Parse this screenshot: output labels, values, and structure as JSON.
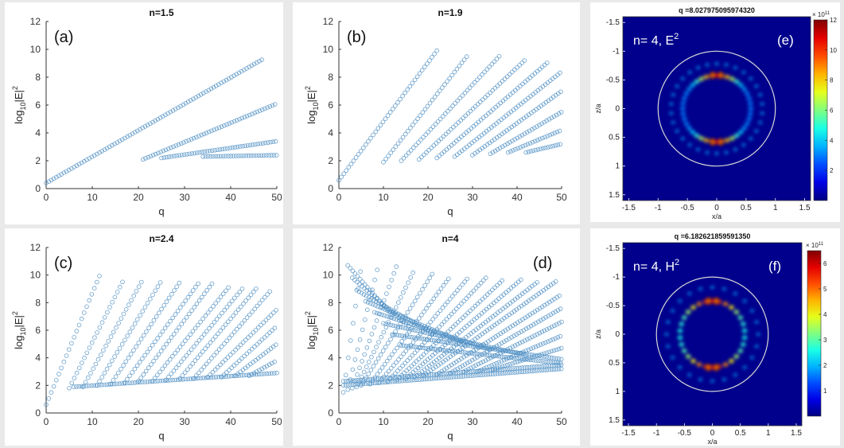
{
  "colors": {
    "marker": "#4f8fc4",
    "background": "#e9e9e9",
    "field_background": "#00008c",
    "ring": "#d8d8d8"
  },
  "chart_data": [
    {
      "type": "scatter",
      "panel_label": "(a)",
      "title": "n=1.5",
      "xlabel": "q",
      "ylabel": "log10|E|2",
      "xlim": [
        0,
        50
      ],
      "ylim": [
        0,
        12
      ],
      "xticks": [
        "0",
        "10",
        "20",
        "30",
        "40",
        "50"
      ],
      "yticks": [
        "0",
        "2",
        "4",
        "6",
        "8",
        "10",
        "12"
      ],
      "series": [
        {
          "x": [
            0,
            47
          ],
          "y": [
            0.4,
            9.3
          ]
        },
        {
          "x": [
            21,
            50
          ],
          "y": [
            2.1,
            6.1
          ]
        },
        {
          "x": [
            25,
            50
          ],
          "y": [
            2.2,
            3.4
          ]
        },
        {
          "x": [
            34,
            50
          ],
          "y": [
            2.3,
            2.4
          ]
        }
      ]
    },
    {
      "type": "scatter",
      "panel_label": "(b)",
      "title": "n=1.9",
      "xlabel": "q",
      "ylabel": "log10|E|2",
      "xlim": [
        0,
        50
      ],
      "ylim": [
        0,
        12
      ],
      "xticks": [
        "0",
        "10",
        "20",
        "30",
        "40",
        "50"
      ],
      "yticks": [
        "0",
        "2",
        "4",
        "6",
        "8",
        "10",
        "12"
      ],
      "series": [
        {
          "x": [
            0,
            22
          ],
          "y": [
            0.6,
            9.9
          ]
        },
        {
          "x": [
            10,
            29
          ],
          "y": [
            1.9,
            9.6
          ]
        },
        {
          "x": [
            14,
            36
          ],
          "y": [
            2.0,
            9.5
          ]
        },
        {
          "x": [
            18,
            42
          ],
          "y": [
            2.1,
            9.3
          ]
        },
        {
          "x": [
            22,
            47
          ],
          "y": [
            2.2,
            9.1
          ]
        },
        {
          "x": [
            26,
            50
          ],
          "y": [
            2.3,
            8.4
          ]
        },
        {
          "x": [
            30,
            50
          ],
          "y": [
            2.4,
            7.0
          ]
        },
        {
          "x": [
            34,
            50
          ],
          "y": [
            2.5,
            5.5
          ]
        },
        {
          "x": [
            38,
            50
          ],
          "y": [
            2.6,
            4.2
          ]
        },
        {
          "x": [
            42,
            50
          ],
          "y": [
            2.6,
            3.2
          ]
        }
      ]
    },
    {
      "type": "scatter",
      "panel_label": "(c)",
      "title": "n=2.4",
      "xlabel": "q",
      "ylabel": "log10|E|2",
      "xlim": [
        0,
        50
      ],
      "ylim": [
        0,
        12
      ],
      "xticks": [
        "0",
        "10",
        "20",
        "30",
        "40",
        "50"
      ],
      "yticks": [
        "0",
        "2",
        "4",
        "6",
        "8",
        "10",
        "12"
      ],
      "series": [
        {
          "x": [
            0,
            12
          ],
          "y": [
            0.6,
            10.3
          ]
        },
        {
          "x": [
            5,
            17
          ],
          "y": [
            1.8,
            9.8
          ]
        },
        {
          "x": [
            8,
            21
          ],
          "y": [
            1.9,
            9.7
          ]
        },
        {
          "x": [
            11,
            25
          ],
          "y": [
            2.0,
            9.6
          ]
        },
        {
          "x": [
            14,
            29
          ],
          "y": [
            2.1,
            9.5
          ]
        },
        {
          "x": [
            17,
            33
          ],
          "y": [
            2.2,
            9.4
          ]
        },
        {
          "x": [
            20,
            36
          ],
          "y": [
            2.3,
            9.4
          ]
        },
        {
          "x": [
            23,
            40
          ],
          "y": [
            2.3,
            9.3
          ]
        },
        {
          "x": [
            26,
            43
          ],
          "y": [
            2.4,
            9.2
          ]
        },
        {
          "x": [
            29,
            46
          ],
          "y": [
            2.5,
            9.2
          ]
        },
        {
          "x": [
            32,
            49
          ],
          "y": [
            2.5,
            9.0
          ]
        },
        {
          "x": [
            35,
            50
          ],
          "y": [
            2.6,
            7.5
          ]
        },
        {
          "x": [
            38,
            50
          ],
          "y": [
            2.6,
            6.3
          ]
        },
        {
          "x": [
            41,
            50
          ],
          "y": [
            2.7,
            5.0
          ]
        },
        {
          "x": [
            44,
            50
          ],
          "y": [
            2.7,
            3.8
          ]
        },
        {
          "x": [
            6,
            50
          ],
          "y": [
            1.9,
            2.9
          ]
        }
      ]
    },
    {
      "type": "scatter",
      "panel_label": "(d)",
      "title": "n=4",
      "xlabel": "q",
      "ylabel": "log10|E|2",
      "xlim": [
        0,
        50
      ],
      "ylim": [
        0,
        12
      ],
      "xticks": [
        "0",
        "10",
        "20",
        "30",
        "40",
        "50"
      ],
      "yticks": [
        "0",
        "2",
        "4",
        "6",
        "8",
        "10",
        "12"
      ],
      "series": [
        {
          "x": [
            1,
            5
          ],
          "y": [
            1.5,
            10.6
          ]
        },
        {
          "x": [
            2,
            9
          ],
          "y": [
            1.7,
            10.9
          ]
        },
        {
          "x": [
            3,
            13
          ],
          "y": [
            1.8,
            10.7
          ]
        },
        {
          "x": [
            4,
            17
          ],
          "y": [
            1.9,
            10.4
          ]
        },
        {
          "x": [
            5,
            21
          ],
          "y": [
            2.0,
            10.1
          ]
        },
        {
          "x": [
            7,
            25
          ],
          "y": [
            2.1,
            9.9
          ]
        },
        {
          "x": [
            9,
            29
          ],
          "y": [
            2.2,
            9.8
          ]
        },
        {
          "x": [
            11,
            33
          ],
          "y": [
            2.3,
            9.8
          ]
        },
        {
          "x": [
            13,
            37
          ],
          "y": [
            2.4,
            9.7
          ]
        },
        {
          "x": [
            15,
            41
          ],
          "y": [
            2.5,
            9.7
          ]
        },
        {
          "x": [
            17,
            45
          ],
          "y": [
            2.6,
            9.6
          ]
        },
        {
          "x": [
            19,
            49
          ],
          "y": [
            2.7,
            9.6
          ]
        },
        {
          "x": [
            22,
            50
          ],
          "y": [
            2.8,
            8.6
          ]
        },
        {
          "x": [
            25,
            50
          ],
          "y": [
            2.9,
            7.6
          ]
        },
        {
          "x": [
            28,
            50
          ],
          "y": [
            3.0,
            6.6
          ]
        },
        {
          "x": [
            31,
            50
          ],
          "y": [
            3.0,
            5.6
          ]
        },
        {
          "x": [
            34,
            50
          ],
          "y": [
            3.1,
            4.7
          ]
        },
        {
          "x": [
            2,
            12
          ],
          "y": [
            10.7,
            7.1
          ]
        },
        {
          "x": [
            3,
            16
          ],
          "y": [
            9.8,
            6.2
          ]
        },
        {
          "x": [
            4,
            22
          ],
          "y": [
            8.9,
            5.6
          ]
        },
        {
          "x": [
            6,
            28
          ],
          "y": [
            8.1,
            5.1
          ]
        },
        {
          "x": [
            8,
            34
          ],
          "y": [
            7.3,
            4.6
          ]
        },
        {
          "x": [
            10,
            42
          ],
          "y": [
            6.5,
            4.2
          ]
        },
        {
          "x": [
            12,
            50
          ],
          "y": [
            5.7,
            3.9
          ]
        },
        {
          "x": [
            14,
            50
          ],
          "y": [
            4.9,
            3.6
          ]
        },
        {
          "x": [
            1,
            50
          ],
          "y": [
            2.0,
            3.2
          ]
        },
        {
          "x": [
            1,
            50
          ],
          "y": [
            2.3,
            3.5
          ]
        }
      ]
    }
  ],
  "field_maps": [
    {
      "panel_label": "(e)",
      "title": "q =8.027975095974320",
      "inner_label": "n= 4, E",
      "inner_sup": "2",
      "xlabel": "x/a",
      "ylabel": "z/a",
      "xticks": [
        "-1.5",
        "-1",
        "-0.5",
        "0",
        "0.5",
        "1",
        "1.5"
      ],
      "yticks": [
        "-1.5",
        "-1",
        "-0.5",
        "0",
        "0.5",
        "1",
        "1.5"
      ],
      "colorbar_ticks": [
        "12",
        "10",
        "8",
        "6",
        "4",
        "2"
      ],
      "colorbar_max": 12,
      "colorbar_exponent": "× 10",
      "colorbar_exponent_sup": "11"
    },
    {
      "panel_label": "(f)",
      "title": "q =6.182621859591350",
      "inner_label": "n= 4, H",
      "inner_sup": "2",
      "xlabel": "x/a",
      "ylabel": "z/a",
      "xticks": [
        "-1.5",
        "-1",
        "-0.5",
        "0",
        "0.5",
        "1",
        "1.5"
      ],
      "yticks": [
        "-1.5",
        "-1",
        "-0.5",
        "0",
        "0.5",
        "1",
        "1.5"
      ],
      "colorbar_ticks": [
        "6",
        "5",
        "4",
        "3",
        "2",
        "1"
      ],
      "colorbar_max": 6.5,
      "colorbar_exponent": "× 10",
      "colorbar_exponent_sup": "11"
    }
  ]
}
